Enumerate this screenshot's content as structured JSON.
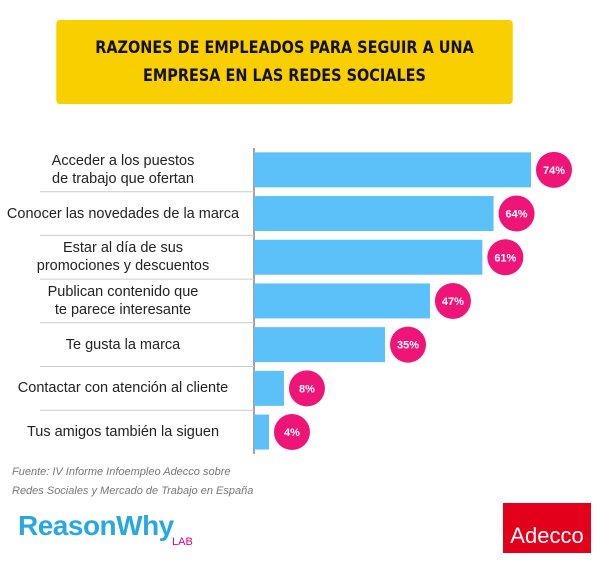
{
  "chart_data": {
    "type": "hbar",
    "title": "RAZONES DE EMPLEADOS PARA SEGUIR A UNA EMPRESA EN LAS REDES SOCIALES",
    "categories": [
      "Acceder a los puestos de trabajo que ofertan",
      "Conocer las novedades de la marca",
      "Estar al día de sus promociones y descuentos",
      "Publican contenido que te parece interesante",
      "Te gusta la marca",
      "Contactar con atención al cliente",
      "Tus amigos también la siguen"
    ],
    "values": [
      74,
      64,
      61,
      47,
      35,
      8,
      4
    ],
    "value_labels": [
      "74%",
      "64%",
      "61%",
      "47%",
      "35%",
      "8%",
      "4%"
    ],
    "color": "#5bc1f8",
    "label_color": "#ef1578",
    "source": [
      "Fuente: IV Informe Infoempleo Adecco sobre",
      "Redes Sociales y Mercado de Trabajo en España"
    ]
  },
  "logos": {
    "left": "ReasonWhy",
    "left_sub": "LAB",
    "right": "Adecco"
  }
}
